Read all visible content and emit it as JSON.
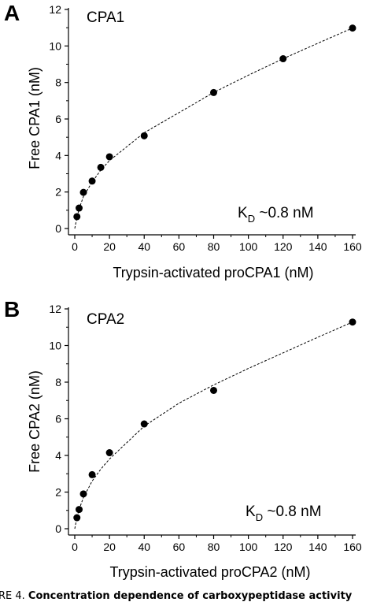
{
  "caption": {
    "prefix": "RE 4. ",
    "text": "Concentration dependence of carboxypeptidase activity"
  },
  "chart_data": [
    {
      "type": "scatter",
      "panel": "A",
      "title": "CPA1",
      "xlabel": "Trypsin-activated proCPA1 (nM)",
      "ylabel": "Free CPA1 (nM)",
      "xlim": [
        0,
        160
      ],
      "ylim": [
        0,
        12
      ],
      "xticks": [
        0,
        20,
        40,
        60,
        80,
        100,
        120,
        140,
        160
      ],
      "yticks": [
        0,
        2,
        4,
        6,
        8,
        10,
        12
      ],
      "annotation": {
        "main": "K",
        "sub": "D",
        "rest": " ~0.8 nM"
      },
      "series": [
        {
          "x": [
            1.25,
            2.5,
            5,
            10,
            15,
            20,
            40,
            80,
            120,
            160
          ],
          "y": [
            0.65,
            1.12,
            1.98,
            2.6,
            3.35,
            3.93,
            5.08,
            7.45,
            9.3,
            10.98
          ]
        }
      ],
      "fit": {
        "x": [
          0,
          1.25,
          2.5,
          5,
          10,
          15,
          20,
          40,
          60,
          80,
          100,
          120,
          140,
          160
        ],
        "y": [
          0,
          0.6,
          1.08,
          1.75,
          2.55,
          3.2,
          3.72,
          5.25,
          6.35,
          7.45,
          8.4,
          9.3,
          10.15,
          10.98
        ]
      },
      "grid": false
    },
    {
      "type": "scatter",
      "panel": "B",
      "title": "CPA2",
      "xlabel": "Trypsin-activated proCPA2 (nM)",
      "ylabel": "Free CPA2 (nM)",
      "xlim": [
        0,
        160
      ],
      "ylim": [
        0,
        12
      ],
      "xticks": [
        0,
        20,
        40,
        60,
        80,
        100,
        120,
        140,
        160
      ],
      "yticks": [
        0,
        2,
        4,
        6,
        8,
        10,
        12
      ],
      "annotation": {
        "main": "K",
        "sub": "D",
        "rest": " ~0.8 nM"
      },
      "series": [
        {
          "x": [
            1.25,
            2.5,
            5,
            10,
            20,
            40,
            80,
            160
          ],
          "y": [
            0.6,
            1.05,
            1.9,
            2.95,
            4.15,
            5.72,
            7.55,
            11.28
          ]
        }
      ],
      "fit": {
        "x": [
          0,
          1.25,
          2.5,
          5,
          10,
          15,
          20,
          40,
          60,
          80,
          100,
          120,
          140,
          160
        ],
        "y": [
          0,
          0.6,
          1.05,
          1.7,
          2.6,
          3.25,
          3.8,
          5.6,
          6.85,
          7.85,
          8.75,
          9.6,
          10.45,
          11.28
        ]
      },
      "grid": false
    }
  ]
}
